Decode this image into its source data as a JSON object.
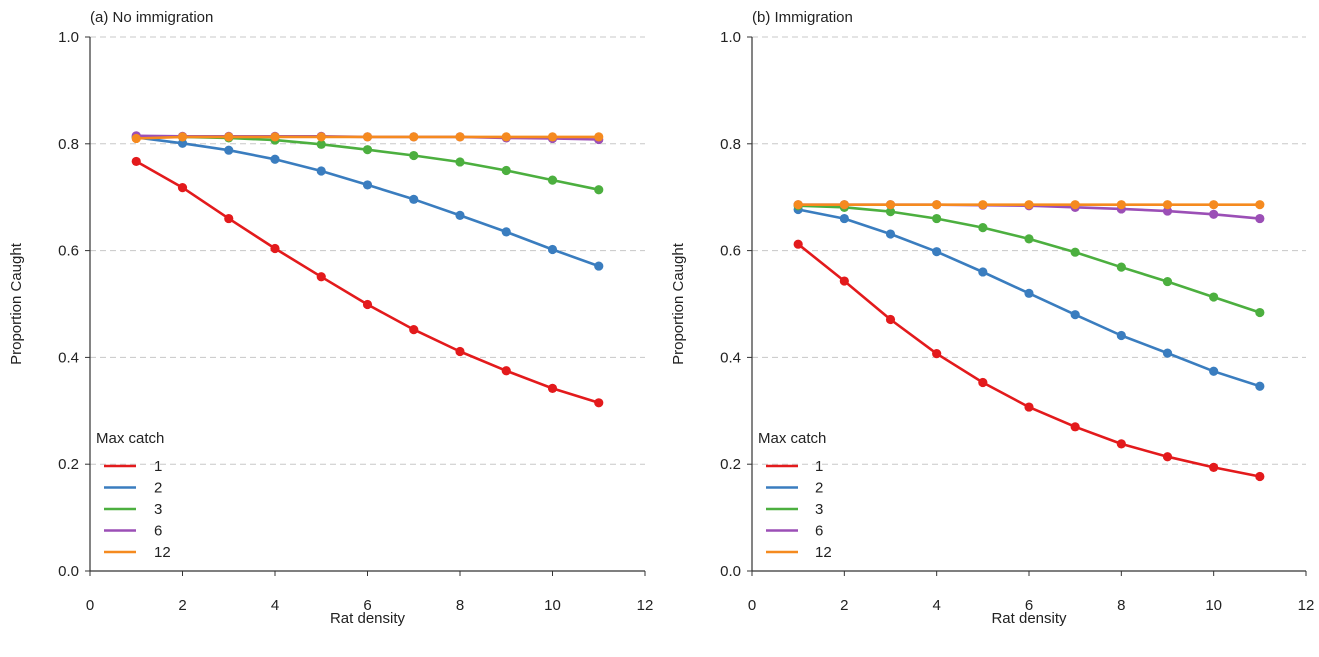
{
  "chart_data": [
    {
      "type": "line",
      "title": "(a) No immigration",
      "xlabel": "Rat density",
      "ylabel": "Proportion Caught",
      "xlim": [
        0,
        12
      ],
      "ylim": [
        0,
        1.0
      ],
      "xticks": [
        "0",
        "2",
        "4",
        "6",
        "8",
        "10",
        "12"
      ],
      "yticks": [
        "0.0",
        "0.2",
        "0.4",
        "0.6",
        "0.8",
        "1.0"
      ],
      "grid": "horizontal dashed",
      "legend_title": "Max catch",
      "legend_position": "bottom-left",
      "x": [
        1,
        2,
        3,
        4,
        5,
        6,
        7,
        8,
        9,
        10,
        11
      ],
      "series": [
        {
          "name": "1",
          "color": "#e31a1c",
          "values": [
            0.767,
            0.718,
            0.66,
            0.604,
            0.551,
            0.499,
            0.452,
            0.411,
            0.375,
            0.342,
            0.315
          ]
        },
        {
          "name": "2",
          "color": "#3a7dbf",
          "values": [
            0.812,
            0.801,
            0.788,
            0.771,
            0.749,
            0.723,
            0.696,
            0.666,
            0.635,
            0.602,
            0.571
          ]
        },
        {
          "name": "3",
          "color": "#4caf3f",
          "values": [
            0.813,
            0.813,
            0.811,
            0.807,
            0.799,
            0.789,
            0.778,
            0.766,
            0.75,
            0.732,
            0.714
          ]
        },
        {
          "name": "6",
          "color": "#9b4fb6",
          "values": [
            0.815,
            0.814,
            0.814,
            0.814,
            0.814,
            0.813,
            0.813,
            0.813,
            0.811,
            0.81,
            0.808
          ]
        },
        {
          "name": "12",
          "color": "#f58a1f",
          "values": [
            0.81,
            0.813,
            0.813,
            0.813,
            0.813,
            0.813,
            0.813,
            0.813,
            0.813,
            0.813,
            0.813
          ]
        }
      ]
    },
    {
      "type": "line",
      "title": "(b) Immigration",
      "xlabel": "Rat density",
      "ylabel": "Proportion Caught",
      "xlim": [
        0,
        12
      ],
      "ylim": [
        0,
        1.0
      ],
      "xticks": [
        "0",
        "2",
        "4",
        "6",
        "8",
        "10",
        "12"
      ],
      "yticks": [
        "0.0",
        "0.2",
        "0.4",
        "0.6",
        "0.8",
        "1.0"
      ],
      "grid": "horizontal dashed",
      "legend_title": "Max catch",
      "legend_position": "bottom-left",
      "x": [
        1,
        2,
        3,
        4,
        5,
        6,
        7,
        8,
        9,
        10,
        11
      ],
      "series": [
        {
          "name": "1",
          "color": "#e31a1c",
          "values": [
            0.612,
            0.543,
            0.471,
            0.407,
            0.353,
            0.307,
            0.27,
            0.238,
            0.214,
            0.194,
            0.177
          ]
        },
        {
          "name": "2",
          "color": "#3a7dbf",
          "values": [
            0.677,
            0.66,
            0.631,
            0.598,
            0.56,
            0.52,
            0.48,
            0.441,
            0.408,
            0.374,
            0.346
          ]
        },
        {
          "name": "3",
          "color": "#4caf3f",
          "values": [
            0.684,
            0.681,
            0.673,
            0.66,
            0.643,
            0.622,
            0.597,
            0.569,
            0.542,
            0.513,
            0.484
          ]
        },
        {
          "name": "6",
          "color": "#9b4fb6",
          "values": [
            0.686,
            0.686,
            0.686,
            0.686,
            0.685,
            0.684,
            0.681,
            0.678,
            0.674,
            0.668,
            0.66
          ]
        },
        {
          "name": "12",
          "color": "#f58a1f",
          "values": [
            0.686,
            0.686,
            0.686,
            0.686,
            0.686,
            0.686,
            0.686,
            0.686,
            0.686,
            0.686,
            0.686
          ]
        }
      ]
    }
  ]
}
